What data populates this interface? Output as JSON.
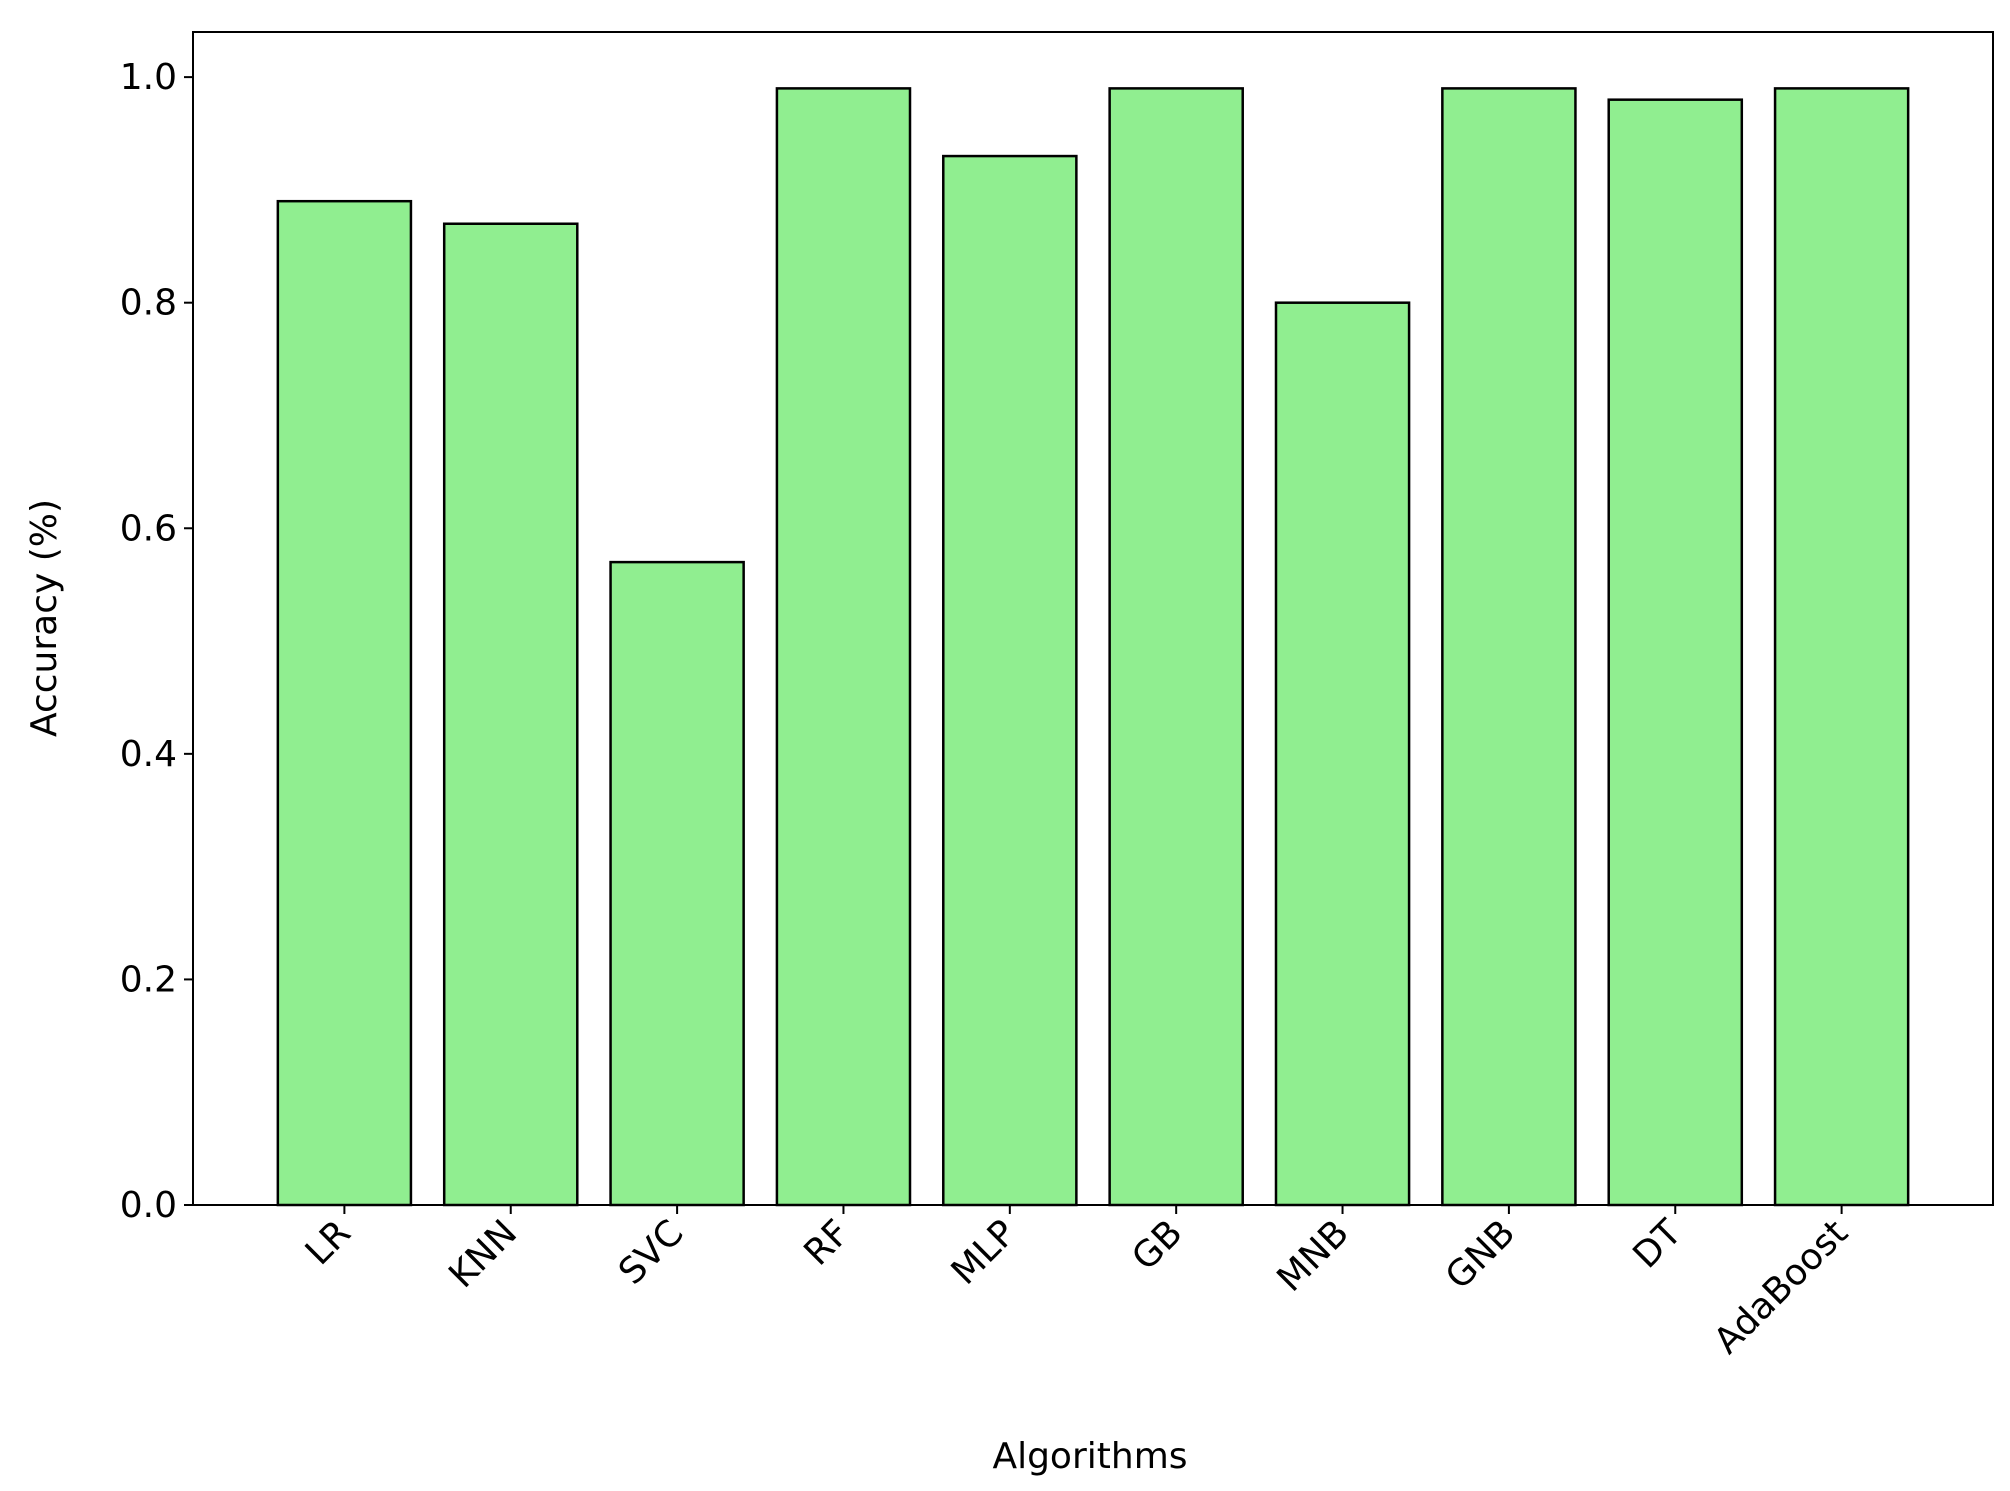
{
  "chart_data": {
    "type": "bar",
    "x_label": "Algorithms",
    "y_label": "Accuracy (%)",
    "categories": [
      "LR",
      "KNN",
      "SVC",
      "RF",
      "MLP",
      "GB",
      "MNB",
      "GNB",
      "DT",
      "AdaBoost"
    ],
    "values": [
      0.89,
      0.87,
      0.57,
      0.99,
      0.93,
      0.99,
      0.8,
      0.99,
      0.98,
      0.99
    ],
    "color": "#90ee90",
    "edge_color": "#000000",
    "ylim": [
      0,
      1.04
    ],
    "yticks": [
      {
        "value": 0,
        "label": "0.0"
      },
      {
        "value": 0.2,
        "label": "0.2"
      },
      {
        "value": 0.4,
        "label": "0.4"
      },
      {
        "value": 0.6,
        "label": "0.6"
      },
      {
        "value": 0.8,
        "label": "0.8"
      },
      {
        "value": 1,
        "label": "1.0"
      }
    ],
    "grid": false
  }
}
